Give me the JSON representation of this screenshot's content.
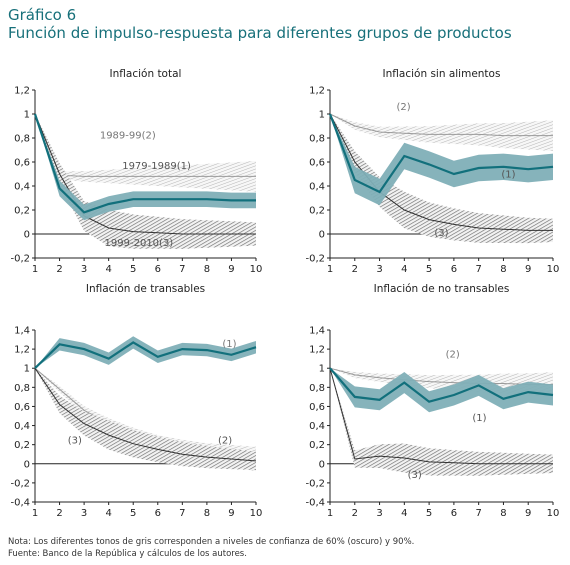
{
  "figure": {
    "title": "Gráfico 6",
    "subtitle": "Función de impulso-respuesta para diferentes grupos de productos",
    "note": "Nota: Los diferentes tonos de gris corresponden a niveles de confianza de 60% (oscuro) y 90%.",
    "source": "Fuente: Banco de la República y cálculos de los autores.",
    "colors": {
      "teal": "#12707c",
      "teal_light": "#7fafb7",
      "gray_dark": "#6e6e6e",
      "gray_light": "#cfcfcf",
      "title": "#17707a"
    }
  },
  "chart_data": [
    {
      "type": "line",
      "title": "Inflación total",
      "x": [
        1,
        2,
        3,
        4,
        5,
        6,
        7,
        8,
        9,
        10
      ],
      "ylim": [
        -0.2,
        1.2
      ],
      "yticks": [
        "-0,2",
        "0",
        "0,2",
        "0,4",
        "0,6",
        "0,8",
        "1",
        "1,2"
      ],
      "xticks": [
        "1",
        "2",
        "3",
        "4",
        "5",
        "6",
        "7",
        "8",
        "9",
        "10"
      ],
      "series": [
        {
          "name": "1979-1989(1)",
          "values": [
            1,
            0.38,
            0.18,
            0.25,
            0.29,
            0.29,
            0.29,
            0.29,
            0.28,
            0.28
          ],
          "style": "teal"
        },
        {
          "name": "1989-99(2)",
          "values": [
            1,
            0.49,
            0.48,
            0.48,
            0.48,
            0.48,
            0.48,
            0.48,
            0.48,
            0.48
          ],
          "style": "light"
        },
        {
          "name": "1999-2010(3)",
          "values": [
            1,
            0.5,
            0.15,
            0.05,
            0.02,
            0.01,
            0,
            0,
            0,
            0
          ],
          "style": "dark"
        }
      ],
      "annotations": [
        "1989-99(2)",
        "1979-1989(1)",
        "1999-2010(3)"
      ]
    },
    {
      "type": "line",
      "title": "Inflación sin alimentos",
      "x": [
        1,
        2,
        3,
        4,
        5,
        6,
        7,
        8,
        9,
        10
      ],
      "ylim": [
        -0.2,
        1.2
      ],
      "yticks": [
        "-0,2",
        "0",
        "0,2",
        "0,4",
        "0,6",
        "0,8",
        "1",
        "1,2"
      ],
      "xticks": [
        "1",
        "2",
        "3",
        "4",
        "5",
        "6",
        "7",
        "8",
        "9",
        "10"
      ],
      "series": [
        {
          "name": "(1)",
          "values": [
            1,
            0.45,
            0.35,
            0.65,
            0.58,
            0.5,
            0.55,
            0.56,
            0.54,
            0.56
          ],
          "style": "teal"
        },
        {
          "name": "(2)",
          "values": [
            1,
            0.9,
            0.85,
            0.84,
            0.83,
            0.83,
            0.83,
            0.82,
            0.82,
            0.82
          ],
          "style": "light"
        },
        {
          "name": "(3)",
          "values": [
            1,
            0.6,
            0.35,
            0.2,
            0.12,
            0.08,
            0.05,
            0.04,
            0.03,
            0.03
          ],
          "style": "dark"
        }
      ],
      "annotations": [
        "(2)",
        "(1)",
        "(3)"
      ]
    },
    {
      "type": "line",
      "title": "Inflación de transables",
      "x": [
        1,
        2,
        3,
        4,
        5,
        6,
        7,
        8,
        9,
        10
      ],
      "ylim": [
        -0.4,
        1.4
      ],
      "yticks": [
        "-0,4",
        "-0,2",
        "0",
        "0,2",
        "0,4",
        "0,6",
        "0,8",
        "1",
        "1,2",
        "1,4"
      ],
      "xticks": [
        "1",
        "2",
        "3",
        "4",
        "5",
        "6",
        "7",
        "8",
        "9",
        "10"
      ],
      "series": [
        {
          "name": "(1)",
          "values": [
            1,
            1.25,
            1.2,
            1.1,
            1.27,
            1.12,
            1.2,
            1.19,
            1.14,
            1.22
          ],
          "style": "teal"
        },
        {
          "name": "(2)",
          "values": [
            1,
            0.78,
            0.56,
            0.42,
            0.31,
            0.22,
            0.16,
            0.11,
            0.08,
            0.05
          ],
          "style": "light"
        },
        {
          "name": "(3)",
          "values": [
            1,
            0.62,
            0.42,
            0.3,
            0.21,
            0.15,
            0.1,
            0.07,
            0.05,
            0.03
          ],
          "style": "dark"
        }
      ],
      "annotations": [
        "(1)",
        "(2)",
        "(3)"
      ]
    },
    {
      "type": "line",
      "title": "Inflación de no transables",
      "x": [
        1,
        2,
        3,
        4,
        5,
        6,
        7,
        8,
        9,
        10
      ],
      "ylim": [
        -0.4,
        1.4
      ],
      "yticks": [
        "-0,4",
        "-0,2",
        "0",
        "0,2",
        "0,4",
        "0,6",
        "0,8",
        "1",
        "1,2",
        "1,4"
      ],
      "xticks": [
        "1",
        "2",
        "3",
        "4",
        "5",
        "6",
        "7",
        "8",
        "9",
        "10"
      ],
      "series": [
        {
          "name": "(1)",
          "values": [
            1,
            0.7,
            0.67,
            0.85,
            0.65,
            0.72,
            0.82,
            0.68,
            0.75,
            0.72
          ],
          "style": "teal"
        },
        {
          "name": "(2)",
          "values": [
            1,
            0.93,
            0.9,
            0.88,
            0.86,
            0.85,
            0.84,
            0.84,
            0.83,
            0.83
          ],
          "style": "light"
        },
        {
          "name": "(3)",
          "values": [
            1,
            0.05,
            0.08,
            0.06,
            0.02,
            0.01,
            0,
            0,
            0,
            0
          ],
          "style": "dark"
        }
      ],
      "annotations": [
        "(2)",
        "(1)",
        "(3)"
      ]
    }
  ]
}
